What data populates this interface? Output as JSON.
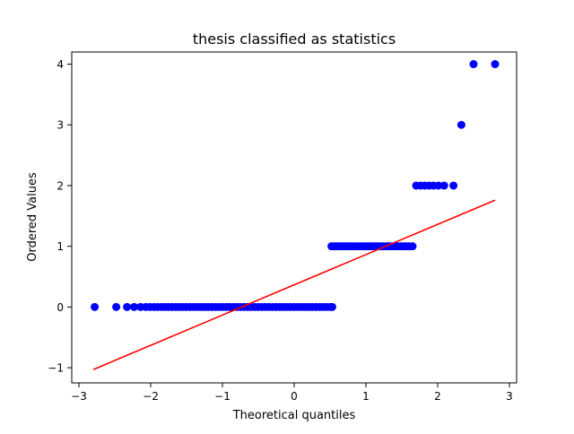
{
  "chart_data": {
    "type": "scatter",
    "title": "thesis classified as statistics",
    "xlabel": "Theoretical quantiles",
    "ylabel": "Ordered Values",
    "xlim": [
      -3.1,
      3.1
    ],
    "ylim": [
      -1.25,
      4.2
    ],
    "xticks": [
      -3,
      -2,
      -1,
      0,
      1,
      2,
      3
    ],
    "yticks": [
      -1,
      0,
      1,
      2,
      3,
      4
    ],
    "xtick_labels": [
      "−3",
      "−2",
      "−1",
      "0",
      "1",
      "2",
      "3"
    ],
    "ytick_labels": [
      "−1",
      "0",
      "1",
      "2",
      "3",
      "4"
    ],
    "grid": false,
    "legend": "none",
    "series": [
      {
        "kind": "points",
        "color": "#0000ff",
        "points": [
          [
            -2.78,
            0
          ],
          [
            -2.48,
            0
          ],
          [
            -2.33,
            0
          ],
          [
            -2.23,
            0
          ],
          [
            -2.14,
            0
          ],
          [
            -2.07,
            0
          ],
          [
            -2.01,
            0
          ],
          [
            -1.95,
            0
          ],
          [
            -1.9,
            0
          ],
          [
            -1.85,
            0
          ],
          [
            -1.8,
            0
          ],
          [
            -1.75,
            0
          ],
          [
            -1.7,
            0
          ],
          [
            -1.65,
            0
          ],
          [
            -1.6,
            0
          ],
          [
            -1.55,
            0
          ],
          [
            -1.5,
            0
          ],
          [
            -1.45,
            0
          ],
          [
            -1.4,
            0
          ],
          [
            -1.35,
            0
          ],
          [
            -1.3,
            0
          ],
          [
            -1.25,
            0
          ],
          [
            -1.2,
            0
          ],
          [
            -1.15,
            0
          ],
          [
            -1.1,
            0
          ],
          [
            -1.05,
            0
          ],
          [
            -1.0,
            0
          ],
          [
            -0.95,
            0
          ],
          [
            -0.9,
            0
          ],
          [
            -0.85,
            0
          ],
          [
            -0.8,
            0
          ],
          [
            -0.75,
            0
          ],
          [
            -0.7,
            0
          ],
          [
            -0.65,
            0
          ],
          [
            -0.6,
            0
          ],
          [
            -0.55,
            0
          ],
          [
            -0.5,
            0
          ],
          [
            -0.45,
            0
          ],
          [
            -0.4,
            0
          ],
          [
            -0.35,
            0
          ],
          [
            -0.3,
            0
          ],
          [
            -0.25,
            0
          ],
          [
            -0.2,
            0
          ],
          [
            -0.15,
            0
          ],
          [
            -0.1,
            0
          ],
          [
            -0.05,
            0
          ],
          [
            0.0,
            0
          ],
          [
            0.05,
            0
          ],
          [
            0.1,
            0
          ],
          [
            0.15,
            0
          ],
          [
            0.2,
            0
          ],
          [
            0.25,
            0
          ],
          [
            0.3,
            0
          ],
          [
            0.35,
            0
          ],
          [
            0.4,
            0
          ],
          [
            0.45,
            0
          ],
          [
            0.5,
            0
          ],
          [
            0.53,
            0
          ],
          [
            0.52,
            1
          ],
          [
            0.56,
            1
          ],
          [
            0.6,
            1
          ],
          [
            0.64,
            1
          ],
          [
            0.68,
            1
          ],
          [
            0.72,
            1
          ],
          [
            0.76,
            1
          ],
          [
            0.8,
            1
          ],
          [
            0.84,
            1
          ],
          [
            0.88,
            1
          ],
          [
            0.92,
            1
          ],
          [
            0.96,
            1
          ],
          [
            1.0,
            1
          ],
          [
            1.04,
            1
          ],
          [
            1.08,
            1
          ],
          [
            1.12,
            1
          ],
          [
            1.16,
            1
          ],
          [
            1.2,
            1
          ],
          [
            1.24,
            1
          ],
          [
            1.28,
            1
          ],
          [
            1.32,
            1
          ],
          [
            1.36,
            1
          ],
          [
            1.4,
            1
          ],
          [
            1.44,
            1
          ],
          [
            1.48,
            1
          ],
          [
            1.52,
            1
          ],
          [
            1.56,
            1
          ],
          [
            1.6,
            1
          ],
          [
            1.65,
            1
          ],
          [
            1.7,
            2
          ],
          [
            1.76,
            2
          ],
          [
            1.82,
            2
          ],
          [
            1.88,
            2
          ],
          [
            1.94,
            2
          ],
          [
            2.01,
            2
          ],
          [
            2.09,
            2
          ],
          [
            2.22,
            2
          ],
          [
            2.33,
            3
          ],
          [
            2.5,
            4
          ],
          [
            2.8,
            4
          ]
        ]
      },
      {
        "kind": "line",
        "color": "#ff0000",
        "x": [
          -2.8,
          2.8
        ],
        "y": [
          -1.03,
          1.76
        ]
      }
    ]
  }
}
